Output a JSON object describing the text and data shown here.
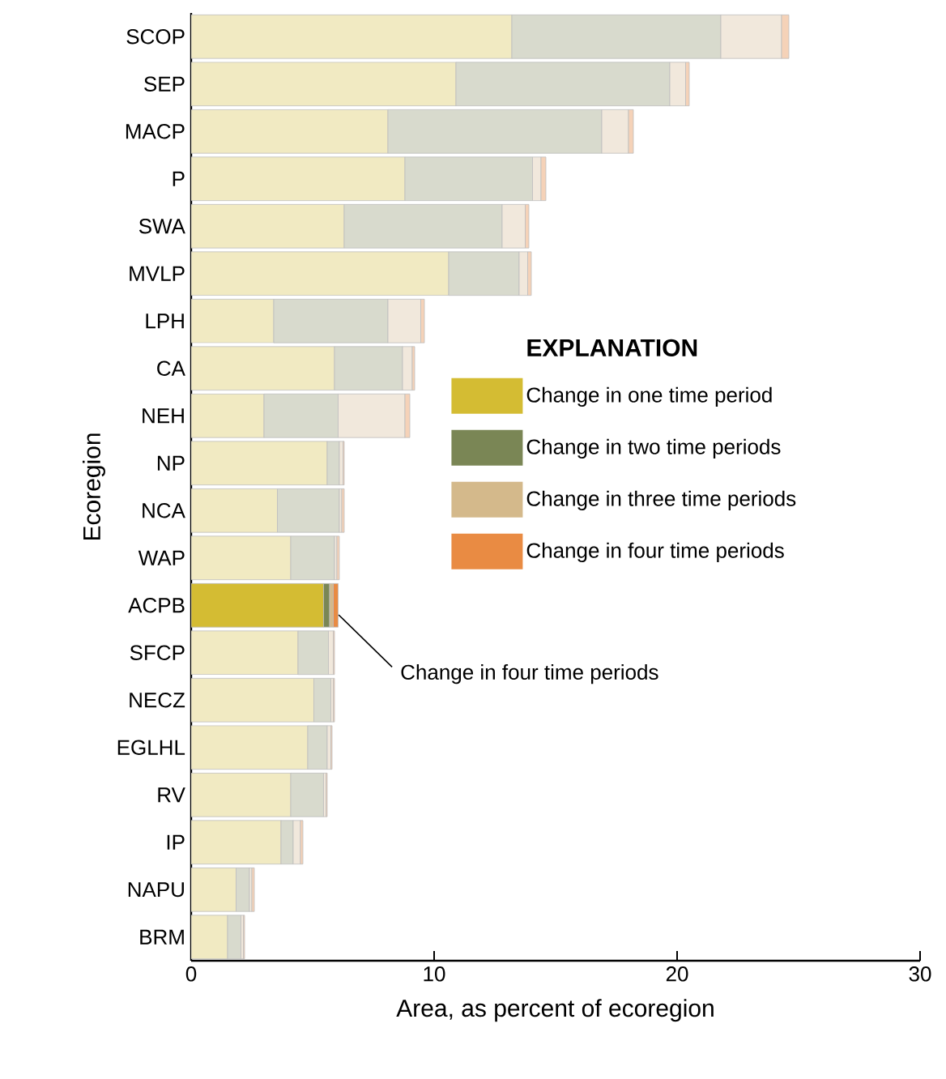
{
  "chart_data": {
    "type": "bar",
    "orientation": "horizontal",
    "stacked": true,
    "xlabel": "Area, as percent of ecoregion",
    "ylabel": "Ecoregion",
    "legend_title": "EXPLANATION",
    "categories": [
      "SCOP",
      "SEP",
      "MACP",
      "P",
      "SWA",
      "MVLP",
      "LPH",
      "CA",
      "NEH",
      "NP",
      "NCA",
      "WAP",
      "ACPB",
      "SFCP",
      "NECZ",
      "EGLHL",
      "RV",
      "IP",
      "NAPU",
      "BRM"
    ],
    "series": [
      {
        "name": "Change in one time period",
        "color": "#d4bc33",
        "colors": [
          "#f1eac2",
          "#f1eac2",
          "#f1eac2",
          "#f1eac2",
          "#f1eac2",
          "#f1eac2",
          "#f1eac2",
          "#f1eac2",
          "#f1eac2",
          "#f1eac2",
          "#f1eac2",
          "#f1eac2",
          "#d4bc33",
          "#f1eac2",
          "#f1eac2",
          "#f1eac2",
          "#f1eac2",
          "#f1eac2",
          "#f1eac2",
          "#f1eac2"
        ],
        "values": [
          13.2,
          10.9,
          8.1,
          8.8,
          6.3,
          10.6,
          3.4,
          5.9,
          3.0,
          5.6,
          3.55,
          4.1,
          5.45,
          4.4,
          5.05,
          4.8,
          4.1,
          3.7,
          1.85,
          1.5
        ]
      },
      {
        "name": "Change in two time periods",
        "color": "#7a8655",
        "colors": [
          "#d8dacd",
          "#d8dacd",
          "#d8dacd",
          "#d8dacd",
          "#d8dacd",
          "#d8dacd",
          "#d8dacd",
          "#d8dacd",
          "#d8dacd",
          "#d8dacd",
          "#d8dacd",
          "#d8dacd",
          "#7a8655",
          "#d8dacd",
          "#d8dacd",
          "#d8dacd",
          "#d8dacd",
          "#d8dacd",
          "#d8dacd",
          "#d8dacd"
        ],
        "values": [
          8.6,
          8.8,
          8.8,
          5.25,
          6.5,
          2.9,
          4.7,
          2.8,
          3.05,
          0.5,
          2.55,
          1.8,
          0.25,
          1.25,
          0.7,
          0.8,
          1.35,
          0.5,
          0.55,
          0.55
        ]
      },
      {
        "name": "Change in three time periods",
        "color": "#d4b98b",
        "colors": [
          "#f1e8dc",
          "#f1e8dc",
          "#f1e8dc",
          "#f1e8dc",
          "#f1e8dc",
          "#f1e8dc",
          "#f1e8dc",
          "#f1e8dc",
          "#f1e8dc",
          "#f1e8dc",
          "#f1e8dc",
          "#f1e8dc",
          "#d4b98b",
          "#f1e8dc",
          "#f1e8dc",
          "#f1e8dc",
          "#f1e8dc",
          "#f1e8dc",
          "#f1e8dc",
          "#f1e8dc"
        ],
        "values": [
          2.5,
          0.65,
          1.1,
          0.35,
          0.95,
          0.35,
          1.35,
          0.4,
          2.75,
          0.15,
          0.1,
          0.1,
          0.15,
          0.2,
          0.1,
          0.15,
          0.1,
          0.3,
          0.1,
          0.1
        ]
      },
      {
        "name": "Change in four time periods",
        "color": "#e98b43",
        "colors": [
          "#f5d2b8",
          "#f5d2b8",
          "#f5d2b8",
          "#f5d2b8",
          "#f5d2b8",
          "#f5d2b8",
          "#f5d2b8",
          "#f5d2b8",
          "#f5d2b8",
          "#f5d2b8",
          "#f5d2b8",
          "#f5d2b8",
          "#e98b43",
          "#f5d2b8",
          "#f5d2b8",
          "#f5d2b8",
          "#f5d2b8",
          "#f5d2b8",
          "#f5d2b8",
          "#f5d2b8"
        ],
        "values": [
          0.3,
          0.15,
          0.2,
          0.2,
          0.15,
          0.15,
          0.15,
          0.1,
          0.2,
          0.05,
          0.1,
          0.1,
          0.2,
          0.05,
          0.05,
          0.05,
          0.05,
          0.1,
          0.1,
          0.05
        ]
      }
    ],
    "xlim": [
      0,
      30
    ],
    "xticks": [
      0,
      10,
      20,
      30
    ],
    "legend": "right",
    "annotations": [
      {
        "text": "Change in four time periods",
        "x": 6.07,
        "y": "ACPB"
      }
    ]
  }
}
